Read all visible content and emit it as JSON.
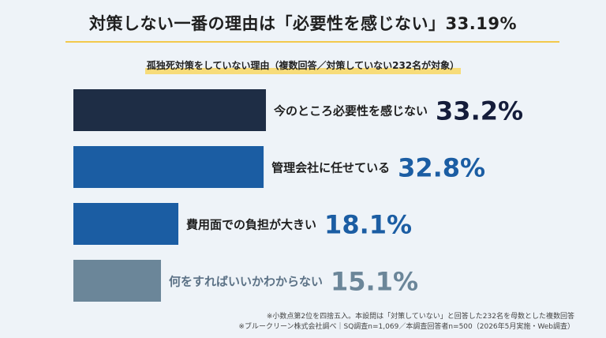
{
  "title": "対策しない一番の理由は「必要性を感じない」33.19%",
  "subtitle": "孤独死対策をしていない理由（複数回答／対策していない232名が対象）",
  "chart_data": {
    "type": "bar",
    "orientation": "horizontal",
    "categories": [
      "今のところ必要性を感じない",
      "管理会社に任せている",
      "費用面での負担が大きい",
      "何をすればいいかわからない"
    ],
    "values": [
      33.2,
      32.8,
      18.1,
      15.1
    ],
    "value_labels": [
      "33.2%",
      "32.8%",
      "18.1%",
      "15.1%"
    ],
    "colors": [
      "#1e2d45",
      "#1b5da3",
      "#1b5da3",
      "#6b8699"
    ],
    "label_colors": [
      "#1f1f1f",
      "#1f1f1f",
      "#1f1f1f",
      "#5c7286"
    ],
    "value_colors": [
      "#141c3a",
      "#1b5da3",
      "#1b5da3",
      "#6b8699"
    ]
  },
  "notes": {
    "line1": "※小数点第2位を四捨五入。本設問は「対策していない」と回答した232名を母数とした複数回答",
    "line2": "※ブルークリーン株式会社調べ｜SQ調査n=1,069／本調査回答者n=500（2026年5月実施・Web調査）"
  }
}
